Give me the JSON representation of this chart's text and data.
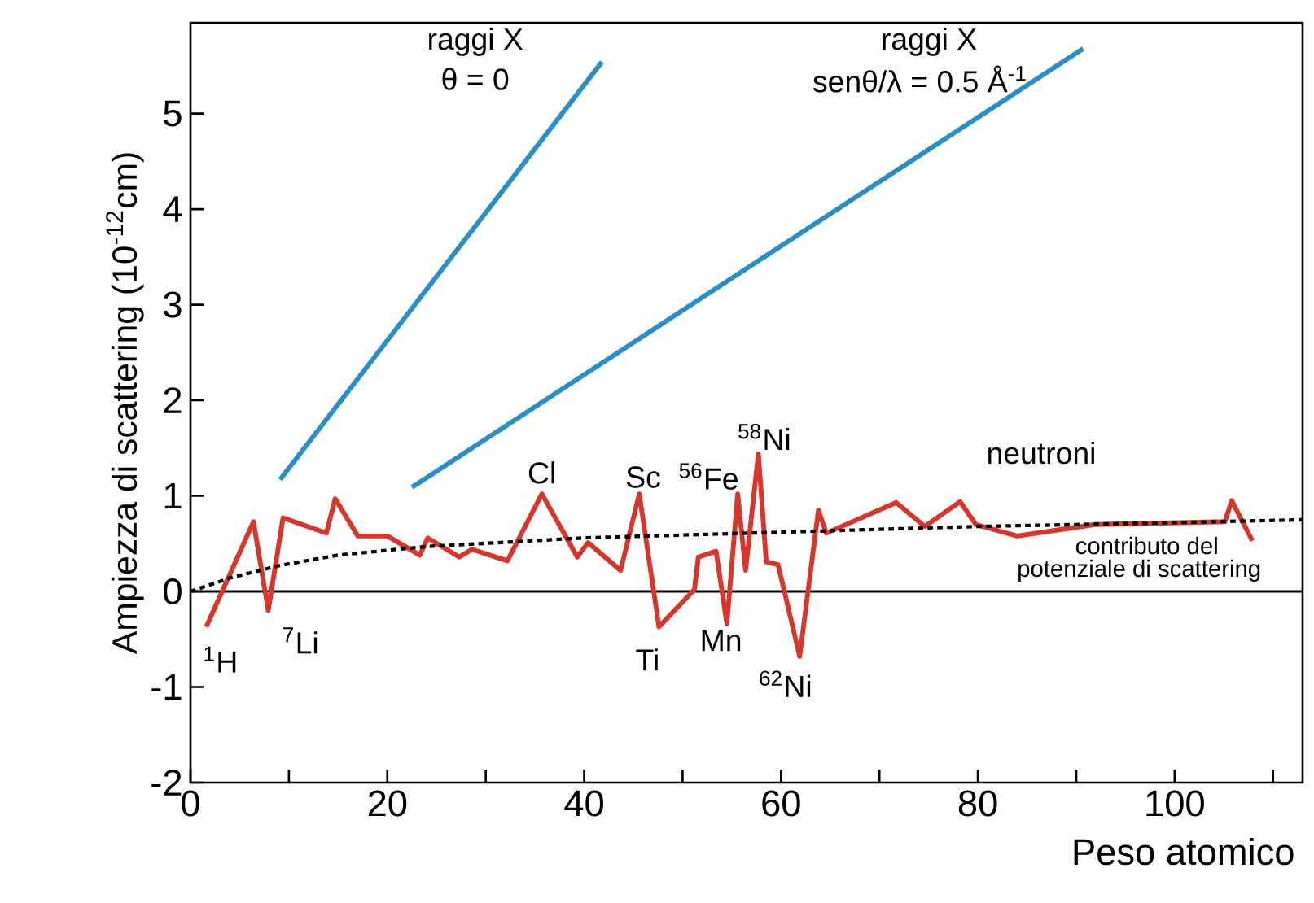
{
  "chart_data": {
    "type": "line",
    "xlabel": "Peso atomico",
    "ylabel": "Ampiezza di scattering (10$^{-12}$cm)",
    "xlim": [
      0,
      113
    ],
    "ylim": [
      -2,
      5.95
    ],
    "xticks": [
      0,
      {
        "value": 10,
        "label": null
      },
      20,
      {
        "value": 30,
        "label": null
      },
      40,
      {
        "value": 50,
        "label": null
      },
      60,
      {
        "value": 70,
        "label": null
      },
      80,
      {
        "value": 90,
        "label": null
      },
      100,
      {
        "value": 110,
        "label": null
      }
    ],
    "yticks": [
      -2,
      -1,
      0,
      1,
      2,
      3,
      4,
      5
    ],
    "grid": false,
    "marker": "none",
    "ref_lines": [
      {
        "axis": "y",
        "value": 0,
        "color": "#000000",
        "line_style": "solid"
      }
    ],
    "series": [
      {
        "color": "#2a8fc8",
        "x": [
          9.1,
          41.8
        ],
        "values": [
          1.17,
          5.54
        ]
      },
      {
        "color": "#2a8fc8",
        "x": [
          22.5,
          90.7
        ],
        "values": [
          1.09,
          5.68
        ]
      },
      {
        "color": "#d9352a",
        "x": [
          1.6,
          6.4,
          7.9,
          9.4,
          13.8,
          14.7,
          17.0,
          20.0,
          23.3,
          24.1,
          27.3,
          28.6,
          32.2,
          35.7,
          39.3,
          40.4,
          43.7,
          45.6,
          47.6,
          51.2,
          51.6,
          53.4,
          54.5,
          55.6,
          56.4,
          57.7,
          58.5,
          59.7,
          61.9,
          63.8,
          64.6,
          71.7,
          74.6,
          78.2,
          79.8,
          84.0,
          91.9,
          105.1,
          105.8,
          107.9
        ],
        "values": [
          -0.37,
          0.73,
          -0.2,
          0.77,
          0.61,
          0.97,
          0.58,
          0.58,
          0.38,
          0.56,
          0.36,
          0.44,
          0.32,
          1.02,
          0.36,
          0.51,
          0.22,
          1.02,
          -0.37,
          0.02,
          0.36,
          0.42,
          -0.34,
          1.02,
          0.22,
          1.44,
          0.31,
          0.28,
          -0.68,
          0.85,
          0.61,
          0.93,
          0.68,
          0.94,
          0.7,
          0.58,
          0.7,
          0.73,
          0.95,
          0.53
        ]
      },
      {
        "color": "#000000",
        "line_style": "dotted",
        "x": [
          0,
          4,
          9,
          15,
          24,
          33,
          40,
          50,
          60,
          70,
          80,
          90,
          100,
          113
        ],
        "values": [
          0,
          0.14,
          0.27,
          0.38,
          0.47,
          0.52,
          0.56,
          0.59,
          0.62,
          0.65,
          0.68,
          0.7,
          0.72,
          0.75
        ]
      }
    ],
    "annotations": [
      "raggi X",
      "θ = 0",
      "raggi X",
      "senθ/λ = 0.5 Å$^{-1}$",
      "$^{1}$H",
      "$^{7}$Li",
      "Cl",
      "Sc",
      "$^{56}$Fe",
      "$^{58}$Ni",
      "Ti",
      "Mn",
      "$^{62}$Ni",
      "neutroni",
      "contributo del",
      "potenziale di scattering"
    ]
  }
}
